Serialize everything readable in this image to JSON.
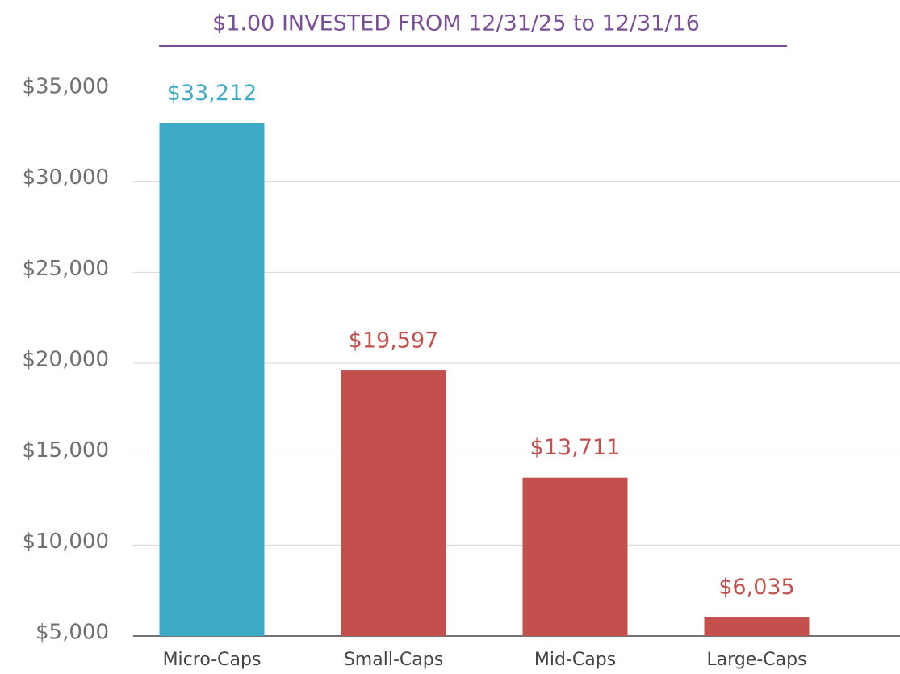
{
  "chart_data": {
    "type": "bar",
    "title": "$1.00 INVESTED FROM 12/31/25 to 12/31/16",
    "categories": [
      "Micro-Caps",
      "Small-Caps",
      "Mid-Caps",
      "Large-Caps"
    ],
    "values": [
      33212,
      19597,
      13711,
      6035
    ],
    "value_labels": [
      "$33,212",
      "$19,597",
      "$13,711",
      "$6,035"
    ],
    "colors": [
      "#3eabc6",
      "#c4504d",
      "#c4504d",
      "#c4504d"
    ],
    "ylim": [
      5000,
      35000
    ],
    "yticks": [
      {
        "value": 5000,
        "label": "$5,000"
      },
      {
        "value": 10000,
        "label": "$10,000"
      },
      {
        "value": 15000,
        "label": "$15,000"
      },
      {
        "value": 20000,
        "label": "$20,000"
      },
      {
        "value": 25000,
        "label": "$25,000"
      },
      {
        "value": 30000,
        "label": "$30,000"
      },
      {
        "value": 35000,
        "label": "$35,000"
      }
    ],
    "grid": true
  }
}
